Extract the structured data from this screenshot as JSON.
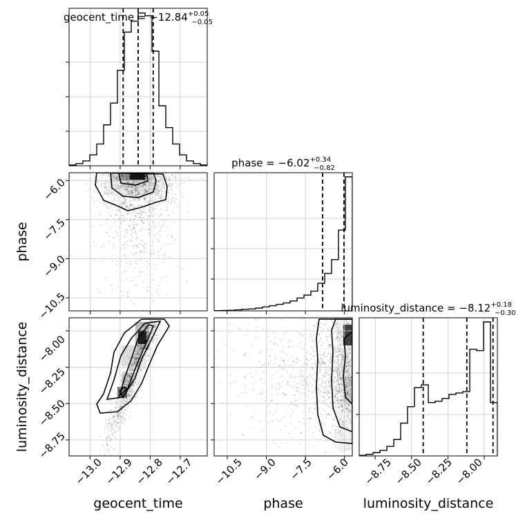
{
  "titles": {
    "geocent_time": {
      "main": "geocent_time = −12.84",
      "sup": "+0.05",
      "sub": "−0.05"
    },
    "phase": {
      "main": "phase = −6.02",
      "sup": "+0.34",
      "sub": "−0.82"
    },
    "luminosity_distance": {
      "main": "luminosity_distance = −8.12",
      "sup": "+0.18",
      "sub": "−0.30"
    }
  },
  "axis_labels": {
    "geocent_time": "geocent_time",
    "phase": "phase",
    "luminosity_distance": "luminosity_distance"
  },
  "ticks": {
    "geocent_time": [
      "−13.0",
      "−12.9",
      "−12.8",
      "−12.7"
    ],
    "phase": [
      "−10.5",
      "−9.0",
      "−7.5",
      "−6.0"
    ],
    "luminosity_distance": [
      "−8.75",
      "−8.50",
      "−8.25",
      "−8.00"
    ]
  },
  "chart_data": {
    "type": "corner",
    "parameters": [
      "geocent_time",
      "phase",
      "luminosity_distance"
    ],
    "grid": true,
    "ranges": {
      "geocent_time": [
        -13.07,
        -12.61
      ],
      "phase": [
        -11.0,
        -5.7
      ],
      "luminosity_distance": [
        -8.86,
        -7.91
      ]
    },
    "quantiles": {
      "geocent_time": [
        -12.89,
        -12.84,
        -12.79
      ],
      "phase": [
        -6.84,
        -6.02,
        -5.68
      ],
      "luminosity_distance": [
        -8.42,
        -8.12,
        -7.94
      ]
    },
    "hist_1d": {
      "geocent_time": {
        "edges": [
          -13.07,
          -13.047,
          -13.024,
          -13.001,
          -12.978,
          -12.955,
          -12.932,
          -12.909,
          -12.886,
          -12.863,
          -12.84,
          -12.817,
          -12.794,
          -12.771,
          -12.748,
          -12.725,
          -12.702,
          -12.679,
          -12.656,
          -12.633,
          -12.61
        ],
        "counts": [
          0.3,
          0.8,
          1.8,
          4,
          8,
          15,
          23,
          35,
          49,
          53,
          56,
          55,
          42,
          22,
          14,
          8,
          4,
          1.8,
          0.8,
          0.3
        ]
      },
      "phase": {
        "edges": [
          -11.0,
          -10.735,
          -10.47,
          -10.205,
          -9.94,
          -9.675,
          -9.41,
          -9.145,
          -8.88,
          -8.615,
          -8.35,
          -8.085,
          -7.82,
          -7.555,
          -7.29,
          -7.025,
          -6.76,
          -6.495,
          -6.23,
          -5.965,
          -5.7
        ],
        "counts": [
          0.1,
          0.2,
          0.3,
          0.5,
          0.8,
          1,
          1.4,
          2,
          2.6,
          3.3,
          4,
          5,
          6.5,
          8,
          10,
          14,
          19,
          26,
          41,
          68
        ]
      },
      "luminosity_distance": {
        "edges": [
          -8.86,
          -8.8125,
          -8.765,
          -8.7175,
          -8.67,
          -8.6225,
          -8.575,
          -8.5275,
          -8.48,
          -8.4325,
          -8.385,
          -8.3375,
          -8.29,
          -8.2425,
          -8.195,
          -8.1475,
          -8.1,
          -8.0525,
          -8.005,
          -7.9575,
          -7.91
        ],
        "counts": [
          0.2,
          0.6,
          1.2,
          2,
          3.5,
          6,
          12,
          18,
          25,
          26,
          19.5,
          20,
          21,
          22.5,
          23,
          23.5,
          39,
          38.5,
          49,
          19.5
        ]
      }
    }
  }
}
